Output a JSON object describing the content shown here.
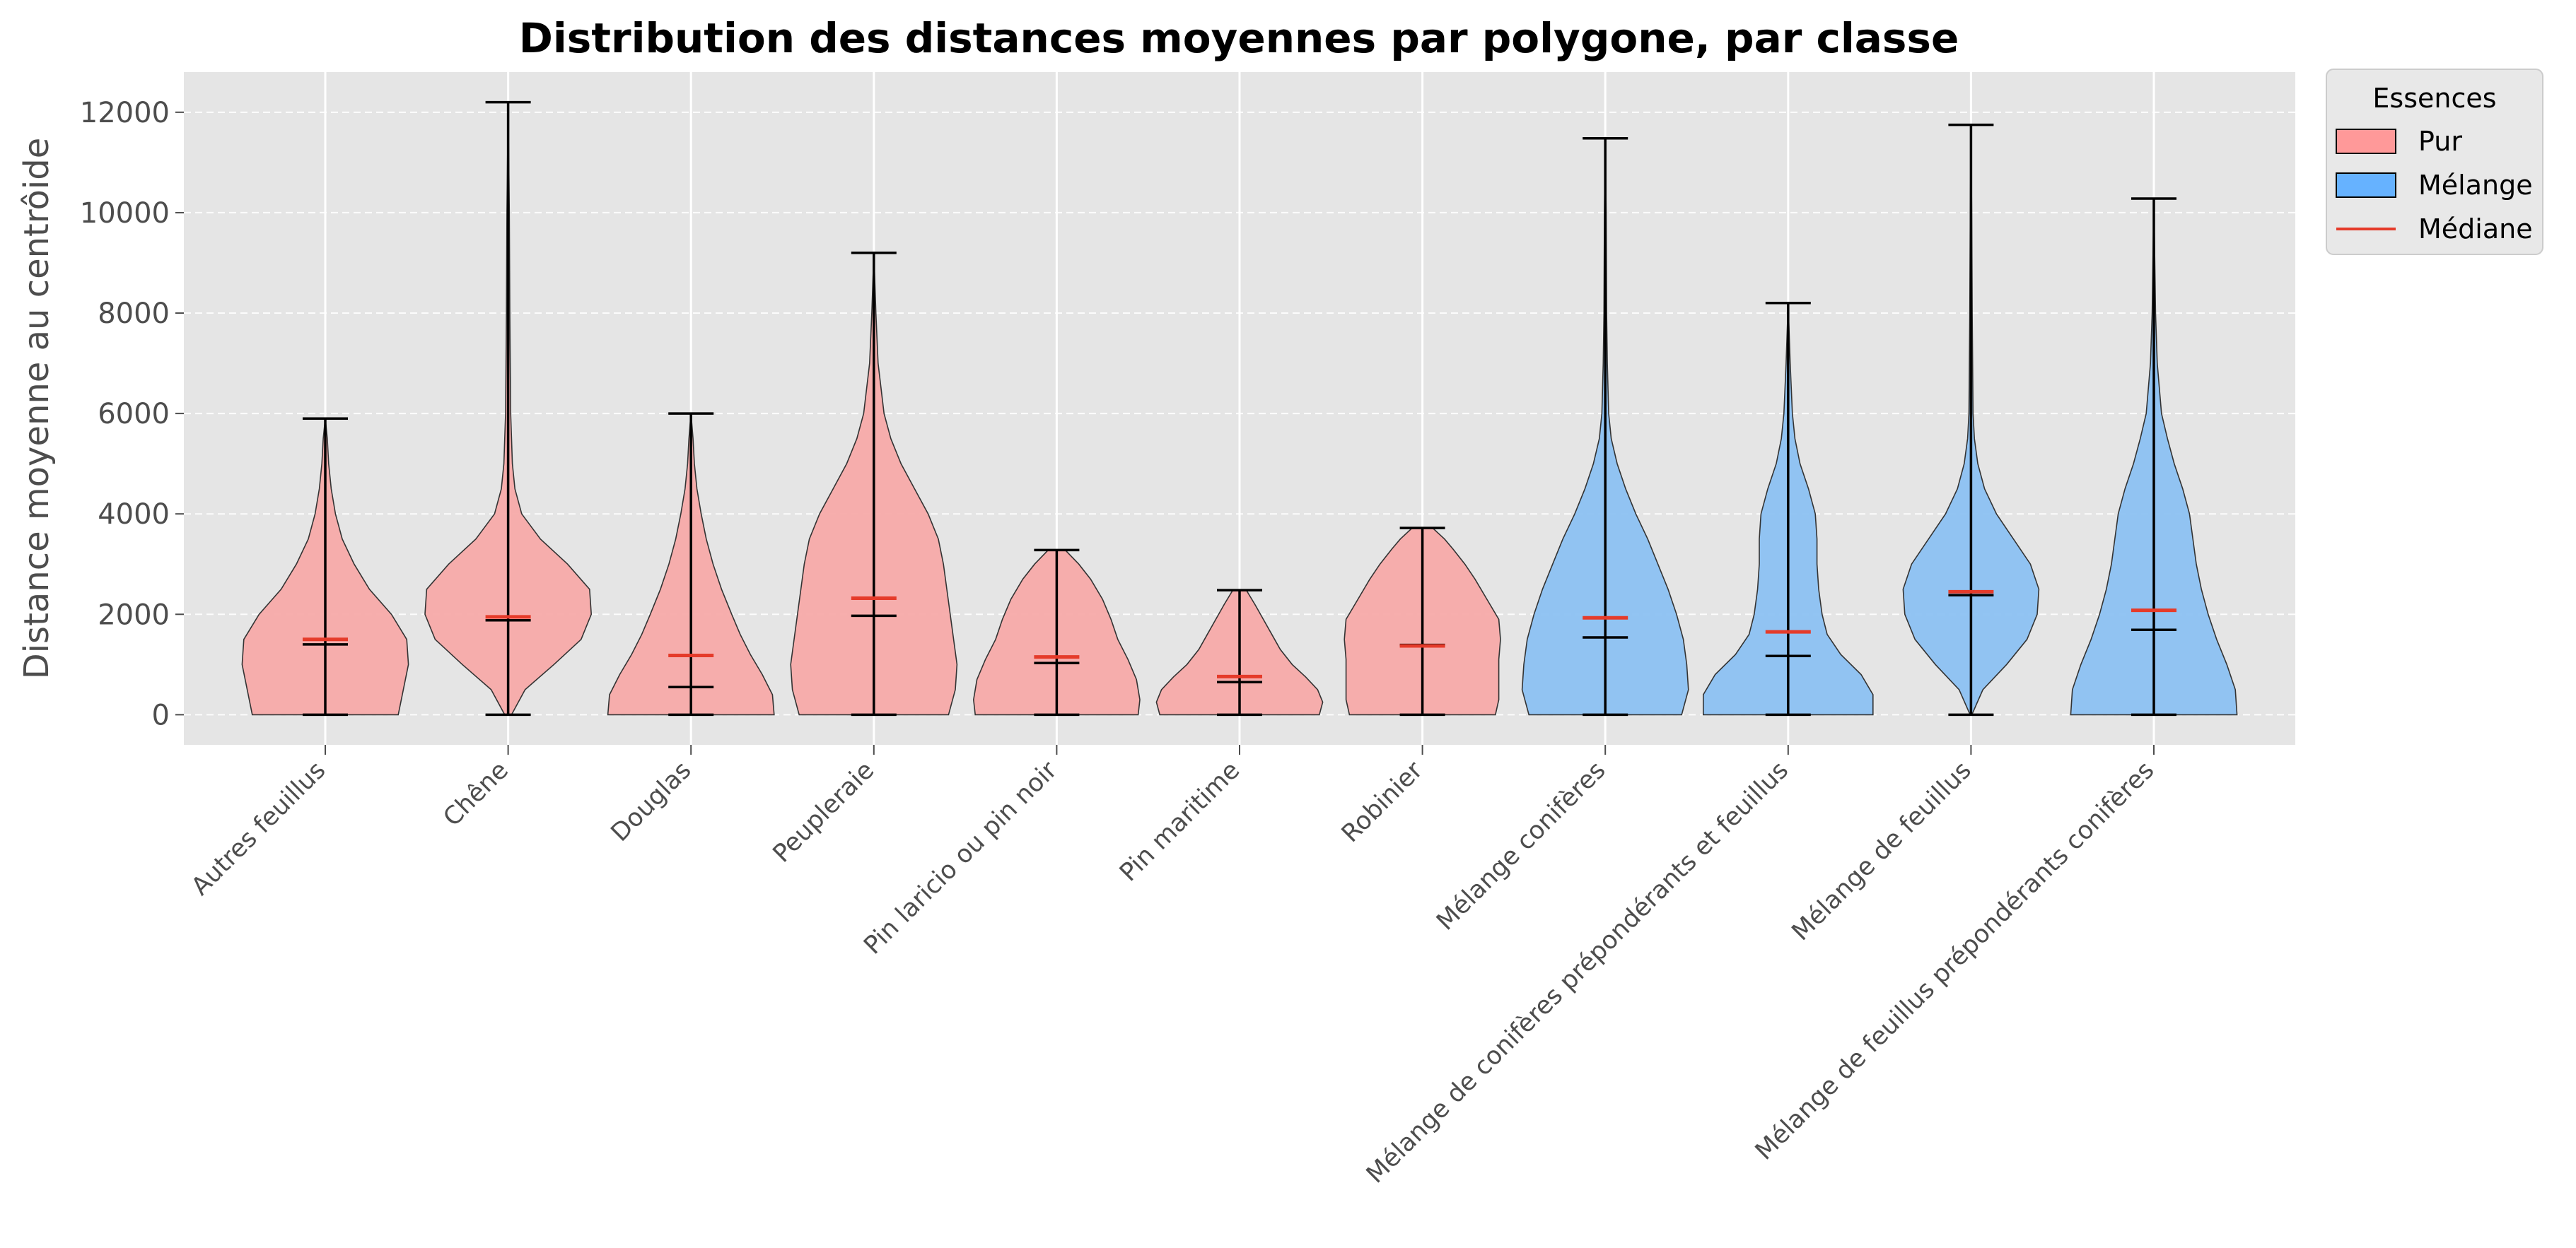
{
  "colors": {
    "pur": "#f7aaa9",
    "melange": "#8cc1f2",
    "pur_legend": "#ff9999",
    "melange_legend": "#66b2ff",
    "median": "#e53b2a",
    "whisker": "#000000",
    "panel": "#e5e5e5",
    "grid": "#ffffff"
  },
  "chart_data": {
    "type": "violin",
    "title": "Distribution des distances moyennes par polygone, par classe",
    "xlabel": "",
    "ylabel": "Distance moyenne au centrôide",
    "ylim": [
      -600,
      12800
    ],
    "yticks": [
      0,
      2000,
      4000,
      6000,
      8000,
      10000,
      12000
    ],
    "grid": true,
    "legend": {
      "title": "Essences",
      "placement": "outside-top-right",
      "entries": [
        {
          "label": "Pur",
          "kind": "patch",
          "color_key": "pur_legend"
        },
        {
          "label": "Mélange",
          "kind": "patch",
          "color_key": "melange_legend"
        },
        {
          "label": "Médiane",
          "kind": "line",
          "color_key": "median"
        }
      ]
    },
    "categories": [
      {
        "name": "Autres feuillus",
        "group": "Pur",
        "min": 0,
        "max": 5900,
        "mean": 1400,
        "median": 1500,
        "density": [
          [
            0,
            0.43
          ],
          [
            500,
            0.46
          ],
          [
            1000,
            0.49
          ],
          [
            1500,
            0.48
          ],
          [
            2000,
            0.39
          ],
          [
            2500,
            0.26
          ],
          [
            3000,
            0.17
          ],
          [
            3500,
            0.1
          ],
          [
            4000,
            0.06
          ],
          [
            4500,
            0.035
          ],
          [
            5000,
            0.02
          ],
          [
            5500,
            0.012
          ],
          [
            5900,
            0
          ]
        ]
      },
      {
        "name": "Chêne",
        "group": "Pur",
        "min": 0,
        "max": 12200,
        "mean": 1880,
        "median": 1950,
        "density": [
          [
            0,
            0.02
          ],
          [
            500,
            0.1
          ],
          [
            1000,
            0.27
          ],
          [
            1500,
            0.43
          ],
          [
            2000,
            0.49
          ],
          [
            2500,
            0.48
          ],
          [
            3000,
            0.35
          ],
          [
            3500,
            0.19
          ],
          [
            4000,
            0.08
          ],
          [
            4500,
            0.04
          ],
          [
            5000,
            0.025
          ],
          [
            6000,
            0.015
          ],
          [
            8000,
            0.01
          ],
          [
            10000,
            0.007
          ],
          [
            12200,
            0
          ]
        ]
      },
      {
        "name": "Douglas",
        "group": "Pur",
        "min": 0,
        "max": 6000,
        "mean": 550,
        "median": 1180,
        "density": [
          [
            0,
            0.49
          ],
          [
            400,
            0.48
          ],
          [
            800,
            0.42
          ],
          [
            1200,
            0.35
          ],
          [
            1600,
            0.29
          ],
          [
            2000,
            0.24
          ],
          [
            2500,
            0.18
          ],
          [
            3000,
            0.13
          ],
          [
            3500,
            0.09
          ],
          [
            4000,
            0.06
          ],
          [
            4500,
            0.035
          ],
          [
            5000,
            0.02
          ],
          [
            5500,
            0.012
          ],
          [
            6000,
            0
          ]
        ]
      },
      {
        "name": "Peupleraie",
        "group": "Pur",
        "min": 0,
        "max": 9200,
        "mean": 1970,
        "median": 2320,
        "density": [
          [
            0,
            0.44
          ],
          [
            500,
            0.48
          ],
          [
            1000,
            0.49
          ],
          [
            1500,
            0.47
          ],
          [
            2000,
            0.45
          ],
          [
            2500,
            0.43
          ],
          [
            3000,
            0.41
          ],
          [
            3500,
            0.38
          ],
          [
            4000,
            0.32
          ],
          [
            4500,
            0.24
          ],
          [
            5000,
            0.16
          ],
          [
            5500,
            0.1
          ],
          [
            6000,
            0.06
          ],
          [
            7000,
            0.025
          ],
          [
            8000,
            0.012
          ],
          [
            9200,
            0
          ]
        ]
      },
      {
        "name": "Pin laricio ou pin noir",
        "group": "Pur",
        "min": 0,
        "max": 3280,
        "mean": 1030,
        "median": 1150,
        "density": [
          [
            0,
            0.48
          ],
          [
            300,
            0.49
          ],
          [
            700,
            0.47
          ],
          [
            1100,
            0.42
          ],
          [
            1500,
            0.36
          ],
          [
            1900,
            0.32
          ],
          [
            2300,
            0.27
          ],
          [
            2700,
            0.2
          ],
          [
            3000,
            0.13
          ],
          [
            3280,
            0.05
          ]
        ]
      },
      {
        "name": "Pin maritime",
        "group": "Pur",
        "min": 0,
        "max": 2480,
        "mean": 650,
        "median": 760,
        "density": [
          [
            0,
            0.47
          ],
          [
            250,
            0.49
          ],
          [
            500,
            0.46
          ],
          [
            750,
            0.39
          ],
          [
            1000,
            0.31
          ],
          [
            1300,
            0.24
          ],
          [
            1600,
            0.19
          ],
          [
            1900,
            0.14
          ],
          [
            2200,
            0.09
          ],
          [
            2480,
            0.04
          ]
        ]
      },
      {
        "name": "Robinier",
        "group": "Pur",
        "min": 0,
        "max": 3720,
        "mean": 1390,
        "median": 1370,
        "density": [
          [
            0,
            0.43
          ],
          [
            300,
            0.45
          ],
          [
            700,
            0.45
          ],
          [
            1100,
            0.45
          ],
          [
            1500,
            0.46
          ],
          [
            1900,
            0.45
          ],
          [
            2300,
            0.38
          ],
          [
            2700,
            0.31
          ],
          [
            3000,
            0.25
          ],
          [
            3300,
            0.18
          ],
          [
            3500,
            0.13
          ],
          [
            3720,
            0.06
          ]
        ]
      },
      {
        "name": "Mélange conifères",
        "group": "Mélange",
        "min": 0,
        "max": 11480,
        "mean": 1540,
        "median": 1930,
        "density": [
          [
            0,
            0.45
          ],
          [
            500,
            0.49
          ],
          [
            1000,
            0.48
          ],
          [
            1500,
            0.46
          ],
          [
            2000,
            0.42
          ],
          [
            2500,
            0.37
          ],
          [
            3000,
            0.31
          ],
          [
            3500,
            0.25
          ],
          [
            4000,
            0.18
          ],
          [
            4500,
            0.12
          ],
          [
            5000,
            0.07
          ],
          [
            5500,
            0.035
          ],
          [
            6000,
            0.02
          ],
          [
            7000,
            0.012
          ],
          [
            8000,
            0.008
          ],
          [
            10000,
            0.005
          ],
          [
            11480,
            0
          ]
        ]
      },
      {
        "name": "Mélange de conifères prépondérants et feuillus",
        "group": "Mélange",
        "min": 0,
        "max": 8200,
        "mean": 1170,
        "median": 1650,
        "density": [
          [
            0,
            0.5
          ],
          [
            400,
            0.5
          ],
          [
            800,
            0.43
          ],
          [
            1200,
            0.31
          ],
          [
            1600,
            0.23
          ],
          [
            2000,
            0.2
          ],
          [
            2500,
            0.18
          ],
          [
            3000,
            0.17
          ],
          [
            3500,
            0.17
          ],
          [
            4000,
            0.16
          ],
          [
            4500,
            0.12
          ],
          [
            5000,
            0.07
          ],
          [
            5500,
            0.04
          ],
          [
            6000,
            0.025
          ],
          [
            7000,
            0.012
          ],
          [
            8200,
            0
          ]
        ]
      },
      {
        "name": "Mélange de feuillus",
        "group": "Mélange",
        "min": 0,
        "max": 11750,
        "mean": 2380,
        "median": 2450,
        "density": [
          [
            0,
            0.005
          ],
          [
            500,
            0.07
          ],
          [
            1000,
            0.21
          ],
          [
            1500,
            0.33
          ],
          [
            2000,
            0.39
          ],
          [
            2500,
            0.4
          ],
          [
            3000,
            0.35
          ],
          [
            3500,
            0.25
          ],
          [
            4000,
            0.15
          ],
          [
            4500,
            0.08
          ],
          [
            5000,
            0.04
          ],
          [
            5500,
            0.02
          ],
          [
            6000,
            0.012
          ],
          [
            8000,
            0.007
          ],
          [
            10000,
            0.004
          ],
          [
            11750,
            0
          ]
        ]
      },
      {
        "name": "Mélange de feuillus prépondérants conifères",
        "group": "Mélange",
        "min": 0,
        "max": 10280,
        "mean": 1690,
        "median": 2080,
        "density": [
          [
            0,
            0.49
          ],
          [
            500,
            0.48
          ],
          [
            1000,
            0.43
          ],
          [
            1500,
            0.37
          ],
          [
            2000,
            0.32
          ],
          [
            2500,
            0.28
          ],
          [
            3000,
            0.25
          ],
          [
            3500,
            0.23
          ],
          [
            4000,
            0.21
          ],
          [
            4500,
            0.17
          ],
          [
            5000,
            0.12
          ],
          [
            5500,
            0.08
          ],
          [
            6000,
            0.045
          ],
          [
            7000,
            0.02
          ],
          [
            8000,
            0.01
          ],
          [
            10280,
            0
          ]
        ]
      }
    ]
  }
}
